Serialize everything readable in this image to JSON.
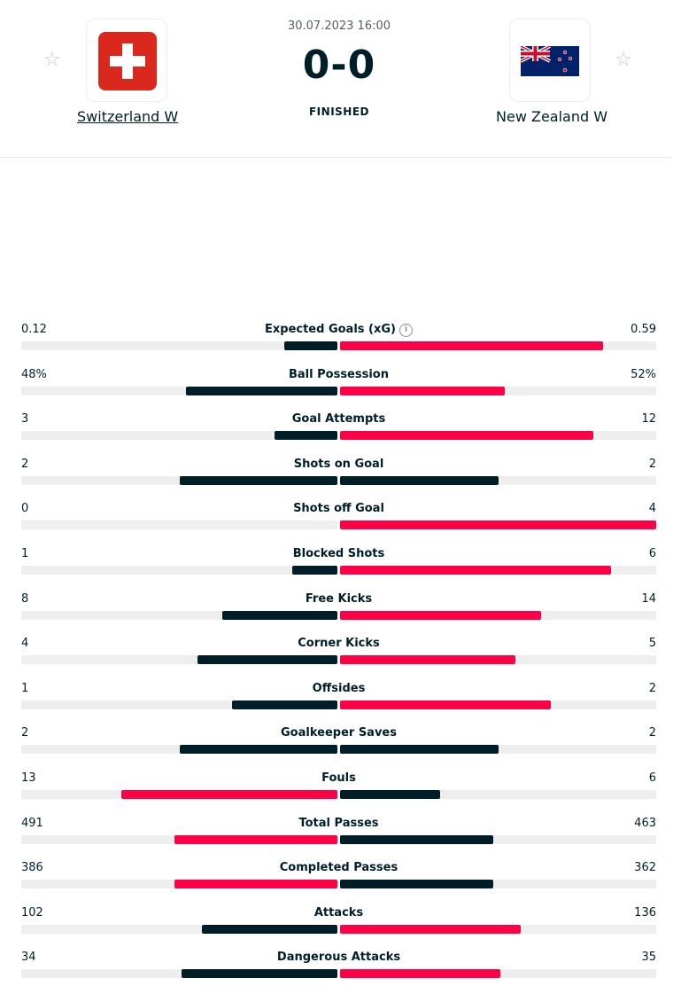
{
  "match": {
    "datetime": "30.07.2023 16:00",
    "score": "0-0",
    "status": "FINISHED",
    "home": {
      "name": "Switzerland W",
      "flag": "switzerland-flag"
    },
    "away": {
      "name": "New Zealand W",
      "flag": "new-zealand-flag"
    }
  },
  "colors": {
    "winner": "#ff0046",
    "other": "#001e28",
    "track": "#eeeeee"
  },
  "stats": [
    {
      "name": "Expected Goals (xG)",
      "home": "0.12",
      "away": "0.59",
      "home_share": 0.169,
      "away_share": 0.831,
      "info": "i"
    },
    {
      "name": "Ball Possession",
      "home": "48%",
      "away": "52%",
      "home_share": 0.48,
      "away_share": 0.52
    },
    {
      "name": "Goal Attempts",
      "home": "3",
      "away": "12",
      "home_share": 0.2,
      "away_share": 0.8
    },
    {
      "name": "Shots on Goal",
      "home": "2",
      "away": "2",
      "home_share": 0.5,
      "away_share": 0.5
    },
    {
      "name": "Shots off Goal",
      "home": "0",
      "away": "4",
      "home_share": 0.0,
      "away_share": 1.0
    },
    {
      "name": "Blocked Shots",
      "home": "1",
      "away": "6",
      "home_share": 0.143,
      "away_share": 0.857
    },
    {
      "name": "Free Kicks",
      "home": "8",
      "away": "14",
      "home_share": 0.364,
      "away_share": 0.636
    },
    {
      "name": "Corner Kicks",
      "home": "4",
      "away": "5",
      "home_share": 0.444,
      "away_share": 0.556
    },
    {
      "name": "Offsides",
      "home": "1",
      "away": "2",
      "home_share": 0.333,
      "away_share": 0.667
    },
    {
      "name": "Goalkeeper Saves",
      "home": "2",
      "away": "2",
      "home_share": 0.5,
      "away_share": 0.5
    },
    {
      "name": "Fouls",
      "home": "13",
      "away": "6",
      "home_share": 0.684,
      "away_share": 0.316
    },
    {
      "name": "Total Passes",
      "home": "491",
      "away": "463",
      "home_share": 0.515,
      "away_share": 0.485
    },
    {
      "name": "Completed Passes",
      "home": "386",
      "away": "362",
      "home_share": 0.516,
      "away_share": 0.484
    },
    {
      "name": "Attacks",
      "home": "102",
      "away": "136",
      "home_share": 0.429,
      "away_share": 0.571
    },
    {
      "name": "Dangerous Attacks",
      "home": "34",
      "away": "35",
      "home_share": 0.493,
      "away_share": 0.507
    }
  ]
}
